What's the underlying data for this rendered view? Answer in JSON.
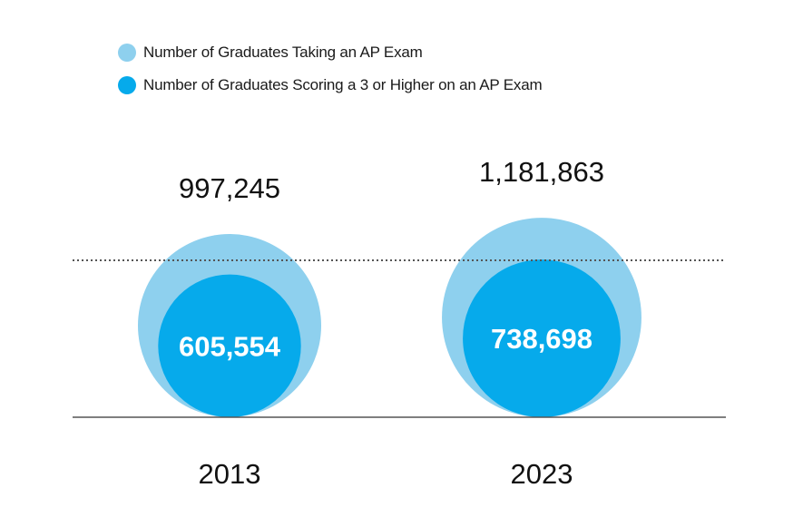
{
  "chart_data": {
    "type": "bubble",
    "title": "",
    "series": [
      {
        "name": "Number of Graduates Taking an AP Exam",
        "color": "#8ed0ee",
        "values": [
          997245,
          1181863
        ]
      },
      {
        "name": "Number of Graduates Scoring a 3 or Higher on an AP Exam",
        "color": "#06aaeb",
        "values": [
          605554,
          738698
        ]
      }
    ],
    "categories": [
      "2013",
      "2023"
    ],
    "value_labels": {
      "taking": [
        "997,245",
        "1,181,863"
      ],
      "scoring": [
        "605,554",
        "738,698"
      ]
    },
    "legend_position": "top-left"
  }
}
